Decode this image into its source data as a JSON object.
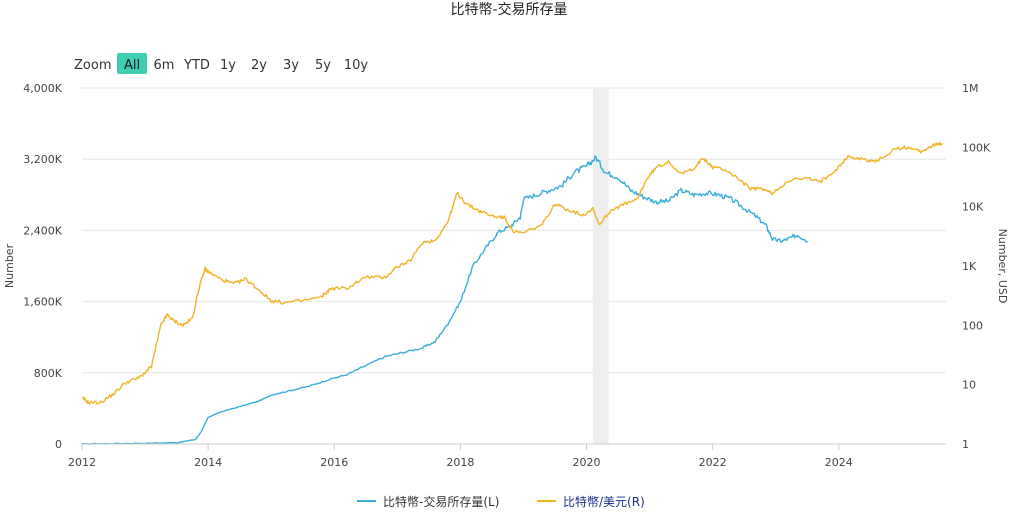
{
  "chart_data": {
    "type": "line",
    "title": "比特幣-交易所存量",
    "zoom": {
      "label": "Zoom",
      "buttons": [
        "All",
        "6m",
        "YTD",
        "1y",
        "2y",
        "3y",
        "5y",
        "10y"
      ],
      "active": "All"
    },
    "x_axis": {
      "ticks": [
        "2012",
        "2014",
        "2016",
        "2018",
        "2020",
        "2022",
        "2024"
      ],
      "range": [
        2012,
        2025.7
      ]
    },
    "y_left": {
      "label": "Number",
      "ticks": [
        "0",
        "800K",
        "1,600K",
        "2,400K",
        "3,200K",
        "4,000K"
      ],
      "range": [
        0,
        4000000
      ]
    },
    "y_right": {
      "label": "Number, USD",
      "scale": "log",
      "ticks": [
        "1",
        "10",
        "100",
        "1K",
        "10K",
        "100K",
        "1M"
      ],
      "range": [
        1,
        1000000
      ]
    },
    "highlight_band": {
      "from": 2020.1,
      "to": 2020.35,
      "color": "#eeeeee"
    },
    "series": [
      {
        "name": "比特幣-交易所存量(L)",
        "axis": "left",
        "color": "#3aaed8",
        "points": [
          [
            2012.0,
            0
          ],
          [
            2012.5,
            5000
          ],
          [
            2013.0,
            8000
          ],
          [
            2013.5,
            15000
          ],
          [
            2013.8,
            50000
          ],
          [
            2013.9,
            150000
          ],
          [
            2014.0,
            300000
          ],
          [
            2014.2,
            360000
          ],
          [
            2014.5,
            420000
          ],
          [
            2014.8,
            480000
          ],
          [
            2015.0,
            550000
          ],
          [
            2015.3,
            600000
          ],
          [
            2015.6,
            650000
          ],
          [
            2015.9,
            720000
          ],
          [
            2016.2,
            780000
          ],
          [
            2016.5,
            880000
          ],
          [
            2016.8,
            980000
          ],
          [
            2017.1,
            1030000
          ],
          [
            2017.4,
            1080000
          ],
          [
            2017.6,
            1150000
          ],
          [
            2017.8,
            1350000
          ],
          [
            2018.0,
            1600000
          ],
          [
            2018.2,
            2000000
          ],
          [
            2018.4,
            2200000
          ],
          [
            2018.6,
            2380000
          ],
          [
            2018.8,
            2450000
          ],
          [
            2018.95,
            2550000
          ],
          [
            2019.0,
            2750000
          ],
          [
            2019.2,
            2800000
          ],
          [
            2019.4,
            2850000
          ],
          [
            2019.6,
            2900000
          ],
          [
            2019.8,
            3050000
          ],
          [
            2020.0,
            3120000
          ],
          [
            2020.15,
            3220000
          ],
          [
            2020.3,
            3050000
          ],
          [
            2020.5,
            3000000
          ],
          [
            2020.7,
            2850000
          ],
          [
            2020.9,
            2780000
          ],
          [
            2021.1,
            2720000
          ],
          [
            2021.3,
            2730000
          ],
          [
            2021.5,
            2850000
          ],
          [
            2021.7,
            2800000
          ],
          [
            2021.9,
            2820000
          ],
          [
            2022.1,
            2800000
          ],
          [
            2022.3,
            2750000
          ],
          [
            2022.5,
            2650000
          ],
          [
            2022.7,
            2550000
          ],
          [
            2022.85,
            2450000
          ],
          [
            2022.95,
            2300000
          ],
          [
            2023.1,
            2280000
          ],
          [
            2023.25,
            2320000
          ],
          [
            2023.35,
            2350000
          ],
          [
            2023.5,
            2280000
          ]
        ]
      },
      {
        "name": "比特幣/美元(R)",
        "axis": "right",
        "color": "#f0b429",
        "points": [
          [
            2012.0,
            6
          ],
          [
            2012.1,
            5
          ],
          [
            2012.3,
            5
          ],
          [
            2012.5,
            7
          ],
          [
            2012.7,
            11
          ],
          [
            2012.9,
            13
          ],
          [
            2013.1,
            20
          ],
          [
            2013.25,
            100
          ],
          [
            2013.35,
            150
          ],
          [
            2013.45,
            120
          ],
          [
            2013.6,
            100
          ],
          [
            2013.75,
            130
          ],
          [
            2013.85,
            400
          ],
          [
            2013.95,
            900
          ],
          [
            2014.0,
            800
          ],
          [
            2014.2,
            600
          ],
          [
            2014.4,
            500
          ],
          [
            2014.6,
            600
          ],
          [
            2014.8,
            400
          ],
          [
            2015.0,
            260
          ],
          [
            2015.2,
            240
          ],
          [
            2015.5,
            260
          ],
          [
            2015.8,
            300
          ],
          [
            2015.95,
            420
          ],
          [
            2016.2,
            420
          ],
          [
            2016.5,
            650
          ],
          [
            2016.8,
            640
          ],
          [
            2017.0,
            980
          ],
          [
            2017.2,
            1200
          ],
          [
            2017.4,
            2500
          ],
          [
            2017.6,
            2700
          ],
          [
            2017.8,
            5500
          ],
          [
            2017.95,
            17000
          ],
          [
            2018.1,
            11000
          ],
          [
            2018.3,
            8500
          ],
          [
            2018.5,
            7000
          ],
          [
            2018.7,
            6500
          ],
          [
            2018.85,
            3700
          ],
          [
            2019.0,
            3600
          ],
          [
            2019.3,
            5000
          ],
          [
            2019.5,
            11000
          ],
          [
            2019.7,
            9000
          ],
          [
            2019.95,
            7200
          ],
          [
            2020.1,
            9500
          ],
          [
            2020.2,
            5000
          ],
          [
            2020.4,
            9000
          ],
          [
            2020.6,
            11000
          ],
          [
            2020.8,
            13000
          ],
          [
            2020.95,
            29000
          ],
          [
            2021.1,
            45000
          ],
          [
            2021.3,
            58000
          ],
          [
            2021.5,
            35000
          ],
          [
            2021.7,
            45000
          ],
          [
            2021.85,
            65000
          ],
          [
            2022.0,
            46000
          ],
          [
            2022.2,
            42000
          ],
          [
            2022.4,
            30000
          ],
          [
            2022.6,
            20000
          ],
          [
            2022.8,
            20000
          ],
          [
            2022.95,
            16500
          ],
          [
            2023.2,
            28000
          ],
          [
            2023.5,
            30000
          ],
          [
            2023.7,
            26000
          ],
          [
            2023.95,
            42000
          ],
          [
            2024.15,
            70000
          ],
          [
            2024.4,
            62000
          ],
          [
            2024.6,
            58000
          ],
          [
            2024.9,
            95000
          ],
          [
            2025.1,
            100000
          ],
          [
            2025.3,
            85000
          ],
          [
            2025.5,
            108000
          ],
          [
            2025.65,
            115000
          ]
        ]
      }
    ]
  }
}
